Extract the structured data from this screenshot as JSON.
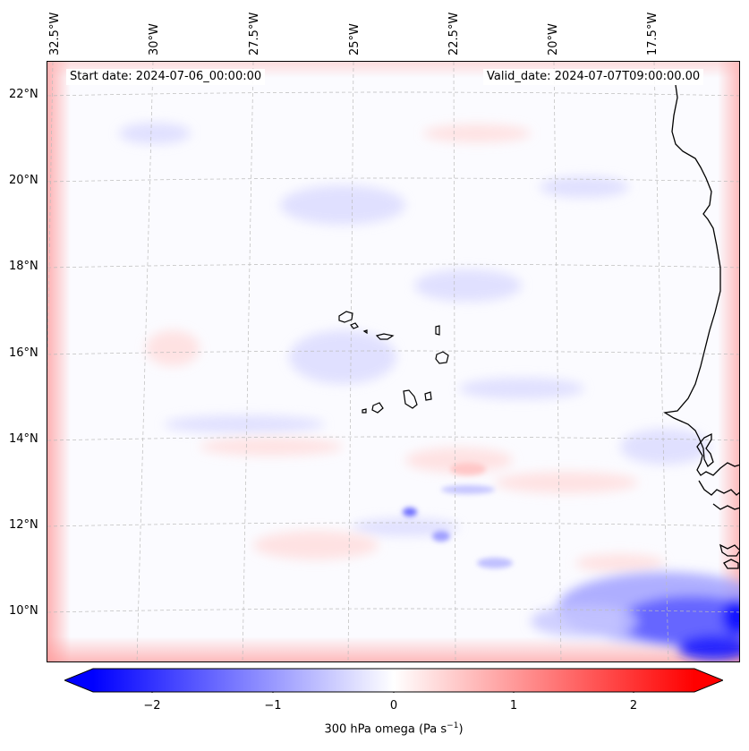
{
  "header": {
    "start_label": "Start date: 2024-07-06_00:00:00",
    "valid_label": "Valid_date: 2024-07-07T09:00:00.00"
  },
  "axes": {
    "lon_labels": [
      "32.5°W",
      "30°W",
      "27.5°W",
      "25°W",
      "22.5°W",
      "20°W",
      "17.5°W"
    ],
    "lat_labels": [
      "22°N",
      "20°N",
      "18°N",
      "16°N",
      "14°N",
      "12°N",
      "10°N"
    ]
  },
  "colorbar": {
    "label_main": "300 hPa omega (Pa s",
    "label_exp": "−1",
    "label_end": ")",
    "ticks": [
      "−2",
      "−1",
      "0",
      "1",
      "2"
    ],
    "min": -2.75,
    "max": 2.75,
    "negative_color": "#0000ff",
    "positive_color": "#ff0000"
  },
  "colors": {
    "coastline": "#000000",
    "gridline": "#bbbbbb",
    "background": "#fbfbff"
  }
}
